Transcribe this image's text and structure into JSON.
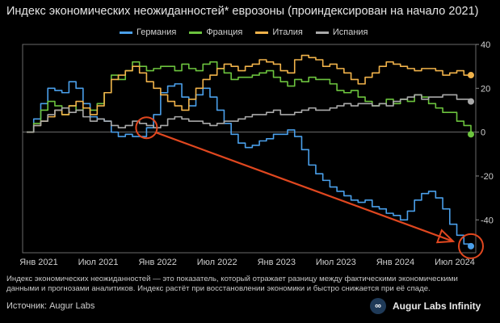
{
  "chart_data": {
    "type": "line",
    "title": "Индекс экономических неожиданностей* еврозоны (проиндексирован на начало 2021)",
    "xlabel": "",
    "ylabel": "",
    "ylim": [
      -55,
      40
    ],
    "yticks": [
      40,
      20,
      0,
      -20,
      -40
    ],
    "x_ticks": [
      "Янв 2021",
      "Июл 2021",
      "Янв 2022",
      "Июл 2022",
      "Янв 2023",
      "Июл 2023",
      "Янв 2024",
      "Июл 2024"
    ],
    "legend_position": "top-center",
    "grid": false,
    "series": [
      {
        "name": "Германия",
        "color": "#4a9fea",
        "values": [
          0,
          6,
          13,
          20,
          19,
          18,
          23,
          20,
          13,
          7,
          6,
          5,
          0,
          -2,
          -1,
          -2,
          -2,
          2,
          8,
          18,
          21,
          22,
          16,
          12,
          17,
          20,
          16,
          10,
          4,
          -1,
          -5,
          -7,
          -6,
          -4,
          -3,
          -1,
          -1,
          1,
          -2,
          -8,
          -15,
          -19,
          -22,
          -25,
          -27,
          -29,
          -31,
          -32,
          -31,
          -34,
          -35,
          -37,
          -38,
          -40,
          -36,
          -31,
          -28,
          -27,
          -30,
          -35,
          -42,
          -47,
          -51,
          -52
        ]
      },
      {
        "name": "Франция",
        "color": "#6cc33e",
        "values": [
          0,
          4,
          10,
          14,
          12,
          8,
          12,
          10,
          11,
          10,
          13,
          18,
          26,
          24,
          28,
          32,
          30,
          28,
          29,
          30,
          30,
          28,
          31,
          29,
          28,
          31,
          32,
          29,
          27,
          24,
          25,
          25,
          26,
          27,
          28,
          25,
          23,
          21,
          24,
          23,
          25,
          24,
          24,
          22,
          19,
          18,
          19,
          16,
          14,
          12,
          13,
          15,
          13,
          15,
          14,
          17,
          16,
          13,
          11,
          9,
          9,
          5,
          3,
          -1
        ]
      },
      {
        "name": "Италия",
        "color": "#f0b24a",
        "values": [
          0,
          3,
          5,
          7,
          10,
          8,
          12,
          14,
          11,
          8,
          12,
          18,
          24,
          26,
          28,
          30,
          27,
          23,
          20,
          17,
          14,
          12,
          10,
          15,
          20,
          24,
          26,
          29,
          31,
          30,
          28,
          30,
          31,
          33,
          32,
          31,
          28,
          27,
          33,
          35,
          34,
          33,
          30,
          31,
          29,
          27,
          24,
          22,
          25,
          27,
          30,
          32,
          31,
          30,
          29,
          28,
          29,
          29,
          28,
          26,
          27,
          28,
          26,
          26
        ]
      },
      {
        "name": "Испания",
        "color": "#a9a9a9",
        "values": [
          0,
          3,
          5,
          8,
          10,
          11,
          9,
          10,
          7,
          5,
          6,
          5,
          3,
          2,
          3,
          5,
          4,
          3,
          2,
          3,
          6,
          7,
          6,
          5,
          5,
          4,
          3,
          4,
          5,
          5,
          6,
          7,
          8,
          8,
          9,
          10,
          8,
          8,
          9,
          10,
          11,
          10,
          10,
          11,
          12,
          13,
          12,
          13,
          13,
          12,
          13,
          12,
          14,
          15,
          16,
          17,
          15,
          16,
          16,
          17,
          17,
          15,
          15,
          14
        ]
      }
    ]
  },
  "note": "Индекс экономических неожиданностей — это показатель, который отражает разницу между фактическими экономическими данными и прогнозами аналитиков. Индекс растёт при восстановлении экономики и быстро снижается при её спаде.",
  "source": "Источник: Augur Labs",
  "brand": {
    "logo_glyph": "∞",
    "name": "Augur Labs Infinity"
  },
  "annotation_color": "#e0471f"
}
